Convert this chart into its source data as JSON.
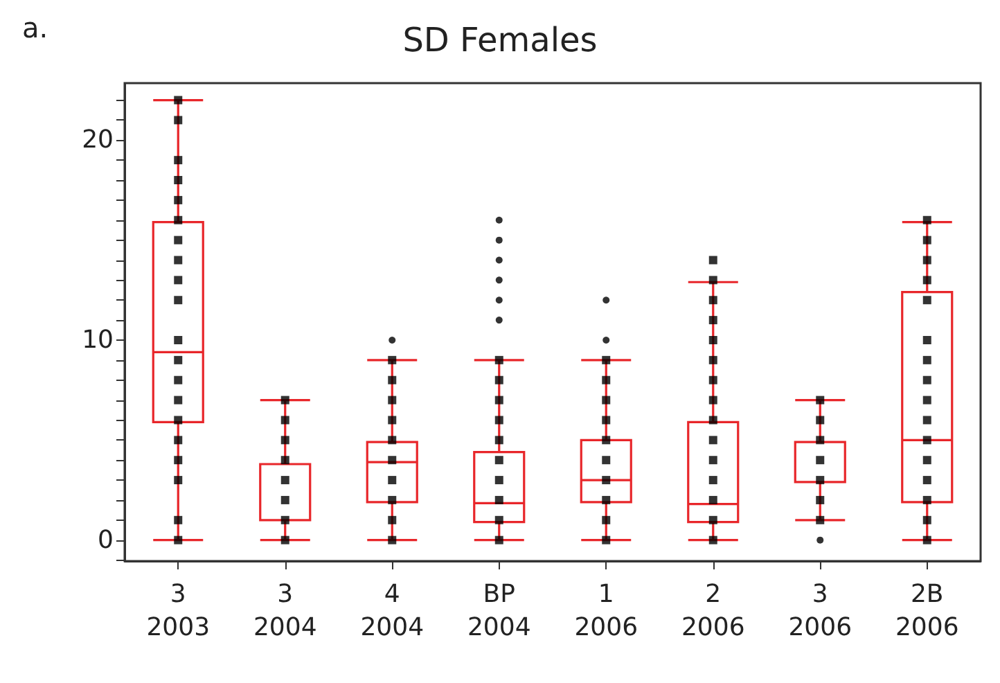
{
  "chart_data": {
    "type": "box",
    "title": "SD Females",
    "annotations": [
      "a."
    ],
    "categories": [
      "3\n2003",
      "3\n2004",
      "4\n2004",
      "BP\n2004",
      "1\n2006",
      "2\n2006",
      "3\n2006",
      "2B\n2006"
    ],
    "ylim": [
      -1.05,
      22.85
    ],
    "yticks": [
      {
        "value": -1,
        "label": null
      },
      0,
      {
        "value": 1,
        "label": null
      },
      {
        "value": 2,
        "label": null
      },
      {
        "value": 3,
        "label": null
      },
      {
        "value": 4,
        "label": null
      },
      {
        "value": 5,
        "label": null
      },
      {
        "value": 6,
        "label": null
      },
      {
        "value": 7,
        "label": null
      },
      {
        "value": 8,
        "label": null
      },
      {
        "value": 9,
        "label": null
      },
      10,
      {
        "value": 11,
        "label": null
      },
      {
        "value": 12,
        "label": null
      },
      {
        "value": 13,
        "label": null
      },
      {
        "value": 14,
        "label": null
      },
      {
        "value": 15,
        "label": null
      },
      {
        "value": 16,
        "label": null
      },
      {
        "value": 17,
        "label": null
      },
      {
        "value": 18,
        "label": null
      },
      {
        "value": 19,
        "label": null
      },
      20,
      {
        "value": 21,
        "label": null
      },
      {
        "value": 22,
        "label": null
      }
    ],
    "series": [
      {
        "color": "#e8262a",
        "boxes": [
          {
            "low": 0,
            "q1": 5.9,
            "median": 9.4,
            "q3": 15.9,
            "high": 22
          },
          {
            "low": 0,
            "q1": 1,
            "median": 1,
            "q3": 3.8,
            "high": 7
          },
          {
            "low": 0,
            "q1": 1.9,
            "median": 3.9,
            "q3": 4.9,
            "high": 9,
            "outliers": [
              10
            ]
          },
          {
            "low": 0,
            "q1": 0.9,
            "median": 1.85,
            "q3": 4.4,
            "high": 9,
            "outliers": [
              11,
              12,
              13,
              14,
              15,
              16
            ]
          },
          {
            "low": 0,
            "q1": 1.9,
            "median": 3,
            "q3": 5,
            "high": 9,
            "outliers": [
              10,
              12
            ]
          },
          {
            "low": 0,
            "q1": 0.9,
            "median": 1.8,
            "q3": 5.9,
            "high": 12.9
          },
          {
            "low": 1,
            "q1": 2.9,
            "median": 2.9,
            "q3": 4.9,
            "high": 7,
            "outliers": [
              0
            ]
          },
          {
            "low": 0,
            "q1": 1.9,
            "median": 5,
            "q3": 12.4,
            "high": 15.9
          }
        ]
      },
      {
        "type": "scatter",
        "color": "#000000",
        "marker": "square",
        "x": [
          "3\n2003",
          "3\n2003",
          "3\n2003",
          "3\n2003",
          "3\n2003",
          "3\n2003",
          "3\n2003",
          "3\n2003",
          "3\n2003",
          "3\n2003",
          "3\n2003",
          "3\n2003",
          "3\n2003",
          "3\n2003",
          "3\n2003",
          "3\n2003",
          "3\n2003",
          "3\n2003",
          "3\n2003",
          "3\n2003",
          "3\n2004",
          "3\n2004",
          "3\n2004",
          "3\n2004",
          "3\n2004",
          "3\n2004",
          "3\n2004",
          "3\n2004",
          "4\n2004",
          "4\n2004",
          "4\n2004",
          "4\n2004",
          "4\n2004",
          "4\n2004",
          "4\n2004",
          "4\n2004",
          "4\n2004",
          "4\n2004",
          "BP\n2004",
          "BP\n2004",
          "BP\n2004",
          "BP\n2004",
          "BP\n2004",
          "BP\n2004",
          "BP\n2004",
          "BP\n2004",
          "BP\n2004",
          "BP\n2004",
          "1\n2006",
          "1\n2006",
          "1\n2006",
          "1\n2006",
          "1\n2006",
          "1\n2006",
          "1\n2006",
          "1\n2006",
          "1\n2006",
          "1\n2006",
          "2\n2006",
          "2\n2006",
          "2\n2006",
          "2\n2006",
          "2\n2006",
          "2\n2006",
          "2\n2006",
          "2\n2006",
          "2\n2006",
          "2\n2006",
          "2\n2006",
          "2\n2006",
          "2\n2006",
          "2\n2006",
          "2\n2006",
          "3\n2006",
          "3\n2006",
          "3\n2006",
          "3\n2006",
          "3\n2006",
          "3\n2006",
          "3\n2006",
          "2B\n2006",
          "2B\n2006",
          "2B\n2006",
          "2B\n2006",
          "2B\n2006",
          "2B\n2006",
          "2B\n2006",
          "2B\n2006",
          "2B\n2006",
          "2B\n2006",
          "2B\n2006",
          "2B\n2006",
          "2B\n2006",
          "2B\n2006",
          "2B\n2006",
          "2B\n2006"
        ],
        "values": [
          0,
          1,
          3,
          4,
          5,
          6,
          7,
          8,
          9,
          10,
          12,
          13,
          14,
          15,
          16,
          17,
          18,
          19,
          21,
          22,
          0,
          1,
          2,
          3,
          4,
          5,
          6,
          7,
          0,
          1,
          2,
          3,
          4,
          5,
          6,
          7,
          8,
          9,
          0,
          1,
          2,
          3,
          4,
          5,
          6,
          7,
          8,
          9,
          0,
          1,
          2,
          3,
          4,
          5,
          6,
          7,
          8,
          9,
          0,
          1,
          2,
          3,
          4,
          5,
          6,
          7,
          8,
          9,
          10,
          11,
          12,
          13,
          14,
          1,
          2,
          3,
          4,
          5,
          6,
          7,
          0,
          1,
          2,
          3,
          4,
          5,
          6,
          7,
          8,
          9,
          10,
          12,
          13,
          14,
          15,
          16
        ]
      }
    ]
  }
}
